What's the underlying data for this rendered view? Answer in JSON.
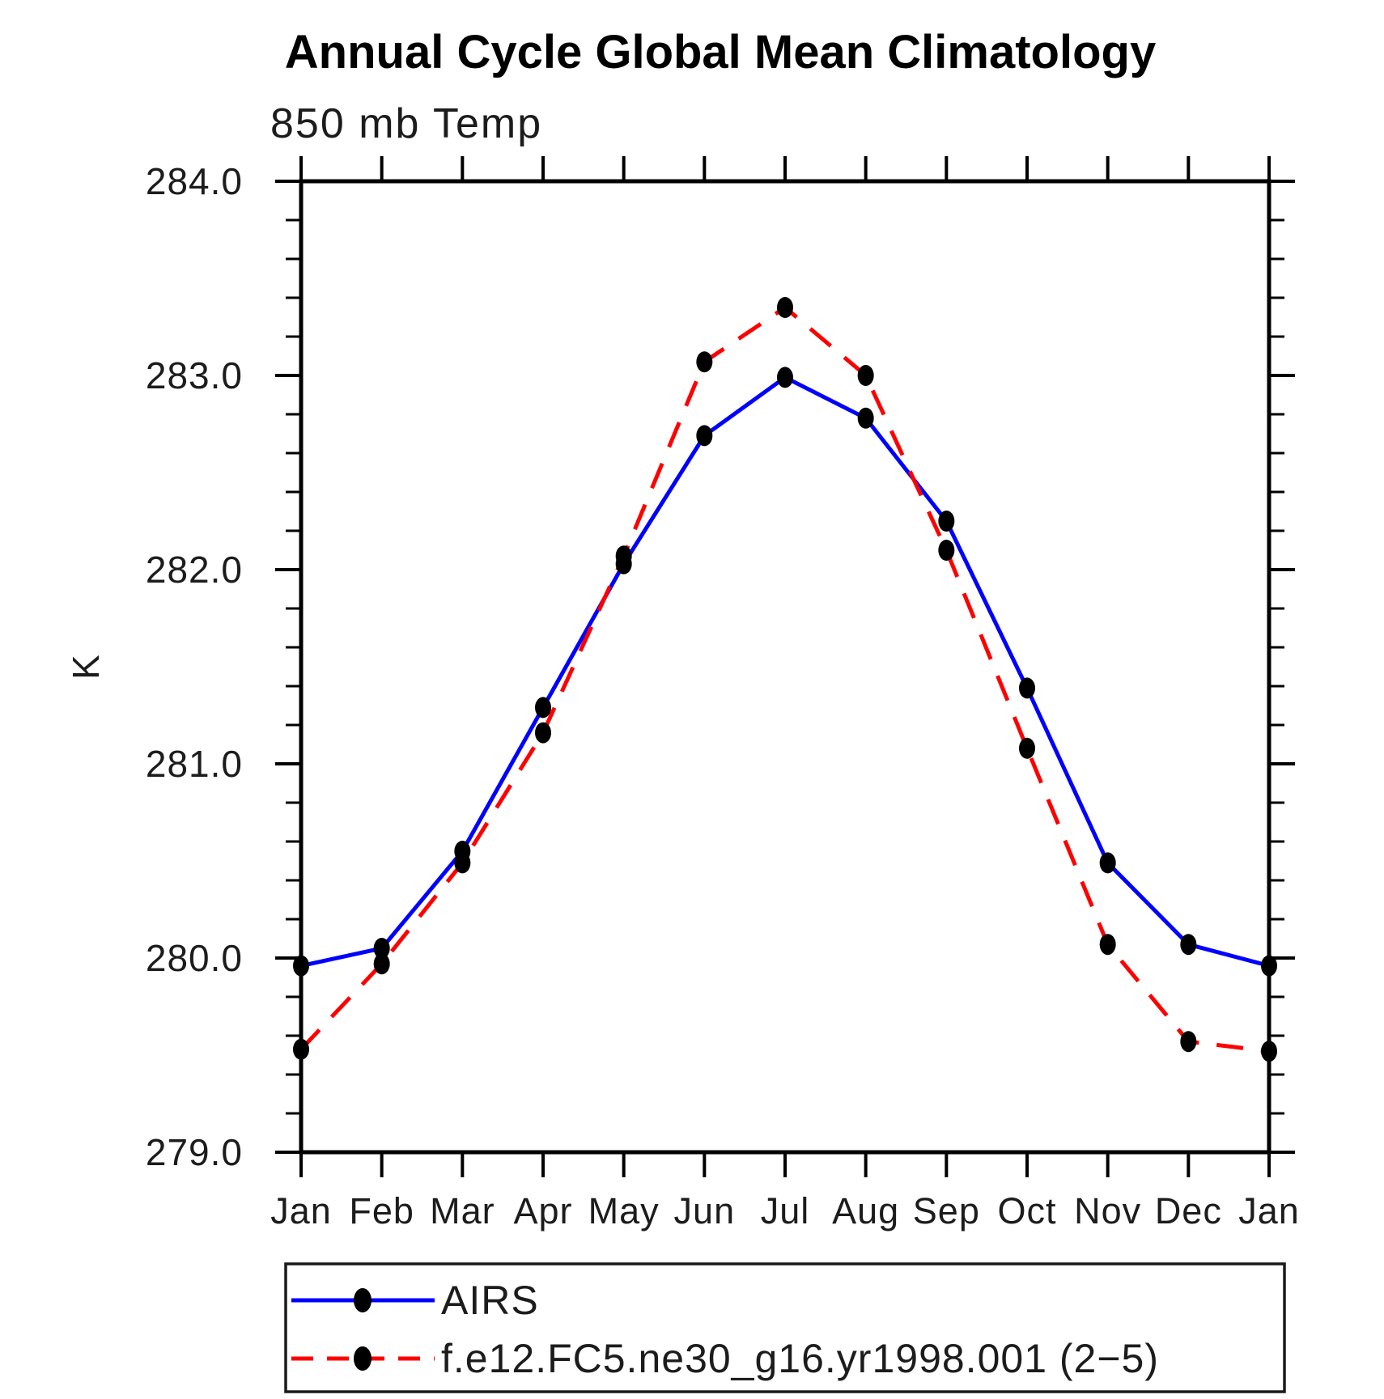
{
  "page": {
    "background": "#ffffff"
  },
  "chart_data": {
    "type": "line",
    "title": "Annual Cycle Global Mean Climatology",
    "subtitle": "850 mb Temp",
    "xlabel": "",
    "ylabel": "K",
    "ylim": [
      279.0,
      284.0
    ],
    "y_major_step": 1.0,
    "y_minor_step": 0.2,
    "y_tick_labels": [
      "279.0",
      "280.0",
      "281.0",
      "282.0",
      "283.0",
      "284.0"
    ],
    "categories": [
      "Jan",
      "Feb",
      "Mar",
      "Apr",
      "May",
      "Jun",
      "Jul",
      "Aug",
      "Sep",
      "Oct",
      "Nov",
      "Dec",
      "Jan"
    ],
    "grid": false,
    "legend_position": "bottom",
    "frame_color": "#000000",
    "marker_color": "#000000",
    "series": [
      {
        "name": "AIRS",
        "color": "#0000ff",
        "style": "solid",
        "values": [
          279.96,
          280.05,
          280.55,
          281.29,
          282.03,
          282.69,
          282.99,
          282.78,
          282.25,
          281.39,
          280.49,
          280.07,
          279.96
        ]
      },
      {
        "name": "f.e12.FC5.ne30_g16.yr1998.001 (2−5)",
        "color": "#ff0000",
        "style": "dashed",
        "values": [
          279.53,
          279.97,
          280.49,
          281.16,
          282.07,
          283.07,
          283.35,
          283.0,
          282.1,
          281.08,
          280.07,
          279.57,
          279.52
        ]
      }
    ]
  }
}
